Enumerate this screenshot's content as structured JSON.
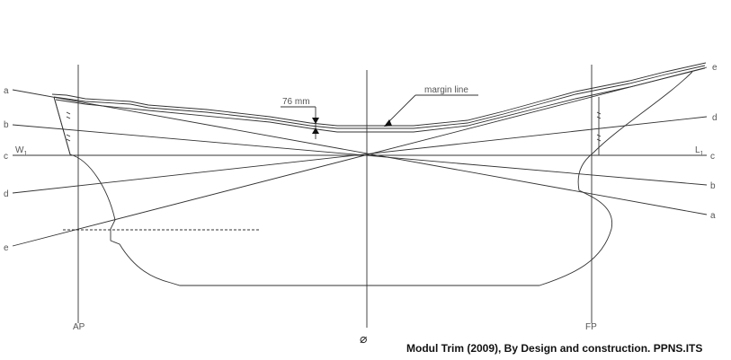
{
  "diagram": {
    "waterline_labels_left": [
      "a",
      "b",
      "c",
      "d",
      "e"
    ],
    "waterline_labels_right": [
      "e",
      "d",
      "c",
      "b",
      "a"
    ],
    "w_label": "W",
    "w_sub": "1",
    "l_label": "L",
    "l_sub": "1",
    "dimension_label": "76 mm",
    "margin_label": "margin line",
    "ap_label": "AP",
    "fp_label": "FP",
    "midship_symbol": "⌀",
    "line_color": "#333333"
  },
  "caption": "Modul Trim (2009), By Design and construction. PPNS.ITS"
}
